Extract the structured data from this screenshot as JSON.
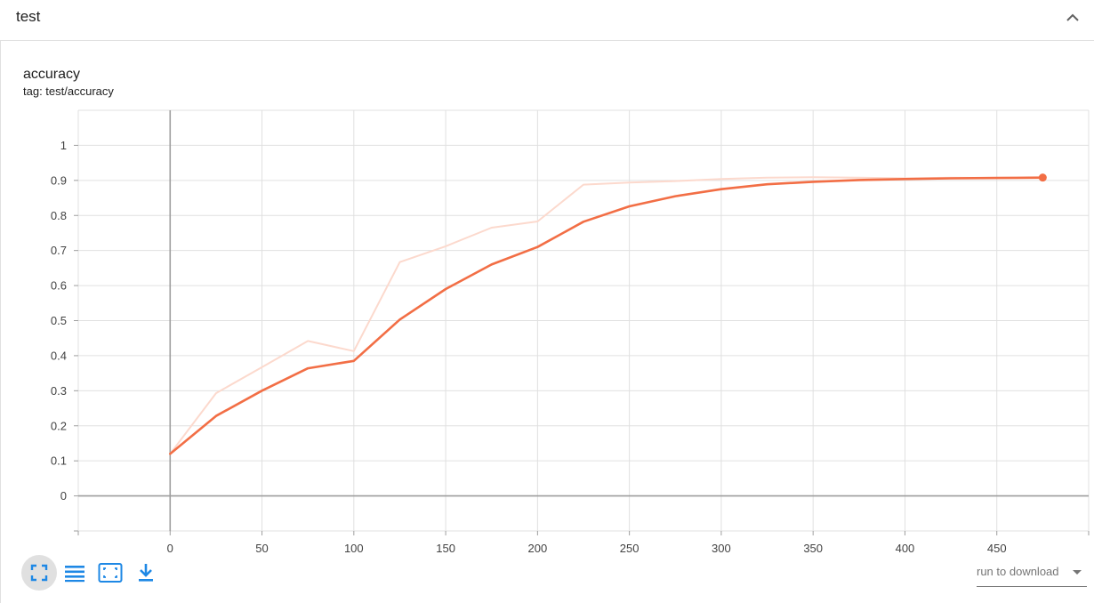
{
  "section": {
    "title": "test"
  },
  "card": {
    "title": "accuracy",
    "tag": "tag: test/accuracy"
  },
  "colors": {
    "smoothed": "#f26e45",
    "raw": "#fcd9cd",
    "grid": "#e0e0e0",
    "axis": "#9e9e9e"
  },
  "toolbar": {
    "icons": [
      "fullscreen-icon",
      "list-icon",
      "fit-domain-icon",
      "download-icon"
    ]
  },
  "download": {
    "placeholder": "run to download"
  },
  "chart_data": {
    "type": "line",
    "xlim": [
      -50,
      500
    ],
    "ylim": [
      -0.1,
      1.1
    ],
    "xticks": [
      0,
      50,
      100,
      150,
      200,
      250,
      300,
      350,
      400,
      450
    ],
    "yticks": [
      0,
      0.1,
      0.2,
      0.3,
      0.4,
      0.5,
      0.6,
      0.7,
      0.8,
      0.9,
      1
    ],
    "ytick_labels": [
      "0",
      "0.1",
      "0.2",
      "0.3",
      "0.4",
      "0.5",
      "0.6",
      "0.7",
      "0.8",
      "0.9",
      "1"
    ],
    "grid": true,
    "series": [
      {
        "x": [
          0,
          25,
          50,
          75,
          100,
          125,
          150,
          175,
          200,
          225,
          250,
          275,
          300,
          325,
          350,
          375,
          400,
          425,
          450,
          475
        ],
        "values": [
          0.12,
          0.293,
          0.367,
          0.442,
          0.413,
          0.667,
          0.712,
          0.765,
          0.783,
          0.888,
          0.894,
          0.898,
          0.904,
          0.908,
          0.909,
          0.908,
          0.906,
          0.908,
          0.907,
          0.907
        ]
      },
      {
        "x": [
          0,
          25,
          50,
          75,
          100,
          125,
          150,
          175,
          200,
          225,
          250,
          275,
          300,
          325,
          350,
          375,
          400,
          425,
          450,
          475
        ],
        "values": [
          0.12,
          0.228,
          0.3,
          0.364,
          0.385,
          0.503,
          0.59,
          0.66,
          0.71,
          0.782,
          0.826,
          0.855,
          0.875,
          0.889,
          0.896,
          0.901,
          0.904,
          0.906,
          0.907,
          0.908
        ]
      }
    ]
  }
}
